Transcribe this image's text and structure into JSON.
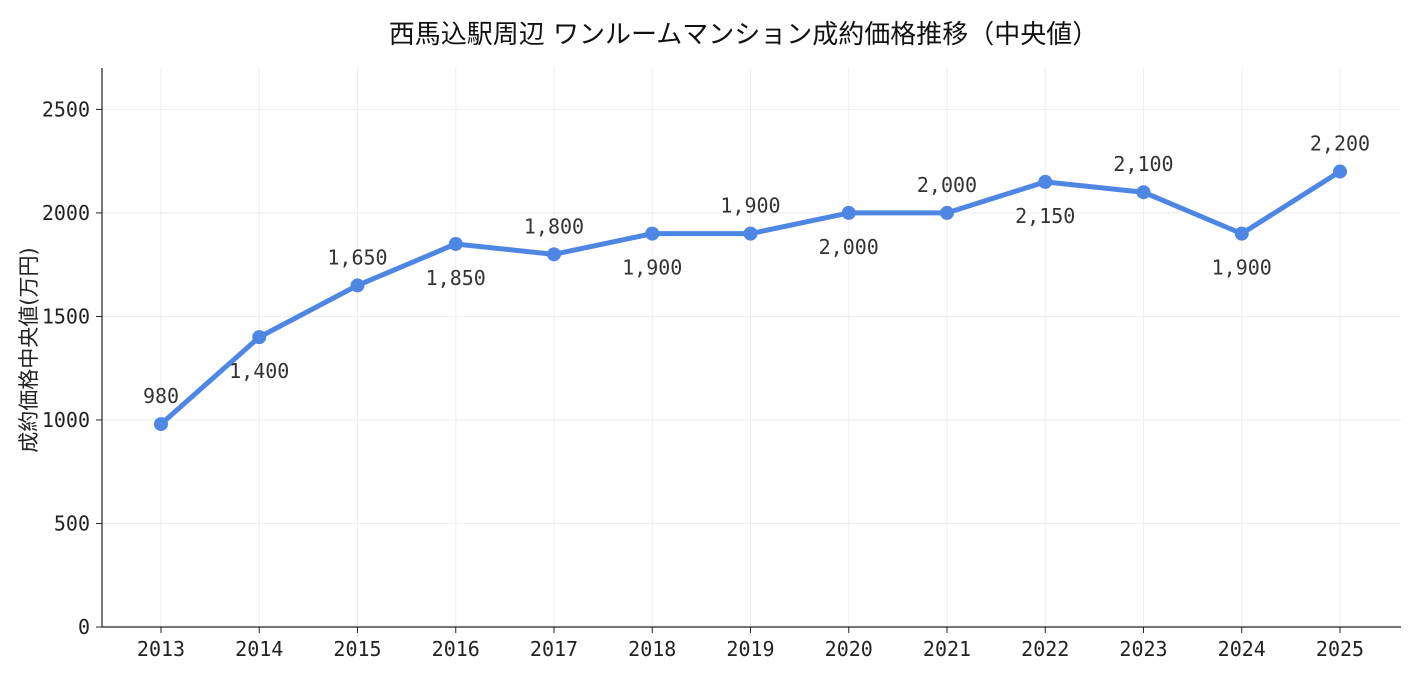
{
  "chart_data": {
    "type": "line",
    "title": "西馬込駅周辺 ワンルームマンション成約価格推移（中央値）",
    "xlabel": "",
    "ylabel": "成約価格中央値(万円)",
    "categories": [
      "2013",
      "2014",
      "2015",
      "2016",
      "2017",
      "2018",
      "2019",
      "2020",
      "2021",
      "2022",
      "2023",
      "2024",
      "2025"
    ],
    "series": [
      {
        "values": [
          980,
          1400,
          1650,
          1850,
          1800,
          1900,
          1900,
          2000,
          2000,
          2150,
          2100,
          1900,
          2200
        ],
        "labels": [
          "980",
          "1,400",
          "1,650",
          "1,850",
          "1,800",
          "1,900",
          "1,900",
          "2,000",
          "2,000",
          "2,150",
          "2,100",
          "1,900",
          "2,200"
        ],
        "label_position": [
          "above",
          "below",
          "above",
          "below",
          "above",
          "below",
          "above",
          "below",
          "above",
          "below",
          "above",
          "below",
          "above"
        ]
      }
    ],
    "ylim": [
      0,
      2700
    ],
    "yticks": [
      0,
      500,
      1000,
      1500,
      2000,
      2500
    ],
    "grid": true,
    "legend": "none",
    "colors": {
      "line": "#4e86e4",
      "grid": "#eeeeee",
      "axis": "#222222",
      "text": "#222222"
    }
  }
}
